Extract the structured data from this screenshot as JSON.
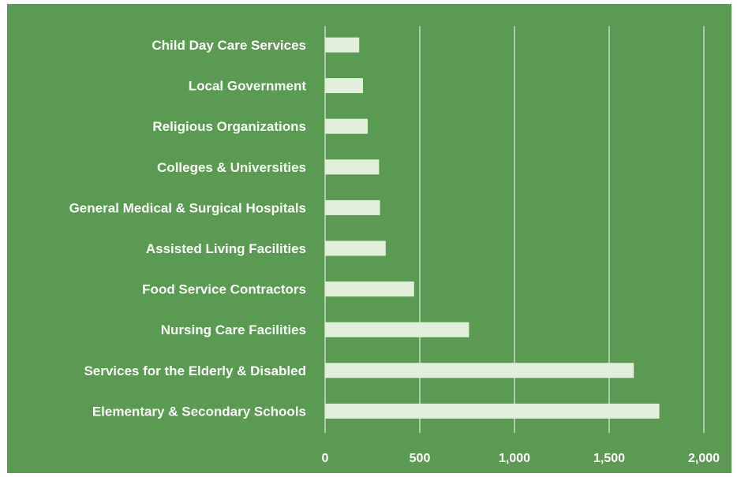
{
  "chart_data": {
    "type": "bar",
    "orientation": "horizontal",
    "title": "",
    "xlabel": "",
    "ylabel": "",
    "categories": [
      "Child Day Care Services",
      "Local Government",
      "Religious Organizations",
      "Colleges & Universities",
      "General Medical & Surgical Hospitals",
      "Assisted Living Facilities",
      "Food Service Contractors",
      "Nursing Care Facilities",
      "Services for the Elderly & Disabled",
      "Elementary & Secondary Schools"
    ],
    "values": [
      180,
      200,
      225,
      285,
      290,
      320,
      470,
      760,
      1630,
      1765
    ],
    "xlim": [
      0,
      2000
    ],
    "xticks": [
      0,
      500,
      1000,
      1500,
      2000
    ],
    "xtick_labels": [
      "0",
      "500",
      "1,000",
      "1,500",
      "2,000"
    ],
    "grid": "vertical",
    "legend": "none",
    "colors": {
      "background": "#5b9a52",
      "bar": "#e2efda",
      "grid": "#ffffff",
      "text": "#ffffff"
    }
  }
}
